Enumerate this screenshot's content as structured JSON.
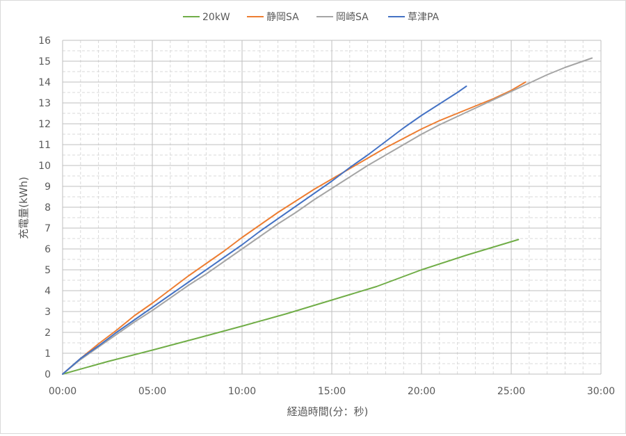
{
  "chart_data": {
    "type": "line",
    "title": "",
    "xlabel": "経過時間(分：秒)",
    "ylabel": "充電量(kWh)",
    "xlim": [
      0,
      30
    ],
    "ylim": [
      0,
      16
    ],
    "x_unit": "minutes",
    "x_ticks": [
      {
        "value": 0,
        "label": "00:00"
      },
      {
        "value": 5,
        "label": "05:00"
      },
      {
        "value": 10,
        "label": "10:00"
      },
      {
        "value": 15,
        "label": "15:00"
      },
      {
        "value": 20,
        "label": "20:00"
      },
      {
        "value": 25,
        "label": "25:00"
      },
      {
        "value": 30,
        "label": "30:00"
      }
    ],
    "y_ticks": [
      0,
      1,
      2,
      3,
      4,
      5,
      6,
      7,
      8,
      9,
      10,
      11,
      12,
      13,
      14,
      15,
      16
    ],
    "grid": true,
    "legend_position": "top",
    "series": [
      {
        "name": "20kW",
        "color": "#70ad47",
        "points": [
          [
            0,
            0
          ],
          [
            2.5,
            0.6
          ],
          [
            5,
            1.15
          ],
          [
            7.5,
            1.72
          ],
          [
            10,
            2.3
          ],
          [
            12.5,
            2.9
          ],
          [
            15,
            3.55
          ],
          [
            17.5,
            4.2
          ],
          [
            20,
            5.0
          ],
          [
            22.5,
            5.7
          ],
          [
            25.4,
            6.45
          ]
        ]
      },
      {
        "name": "静岡SA",
        "color": "#ed7d31",
        "points": [
          [
            0,
            0
          ],
          [
            1,
            0.75
          ],
          [
            2,
            1.45
          ],
          [
            3,
            2.1
          ],
          [
            4,
            2.8
          ],
          [
            5,
            3.4
          ],
          [
            6,
            4.05
          ],
          [
            7,
            4.7
          ],
          [
            8,
            5.3
          ],
          [
            9,
            5.9
          ],
          [
            10,
            6.55
          ],
          [
            11,
            7.15
          ],
          [
            12,
            7.75
          ],
          [
            13,
            8.3
          ],
          [
            14,
            8.85
          ],
          [
            15,
            9.35
          ],
          [
            16,
            9.85
          ],
          [
            17,
            10.35
          ],
          [
            18,
            10.85
          ],
          [
            19,
            11.3
          ],
          [
            20,
            11.75
          ],
          [
            21,
            12.15
          ],
          [
            22,
            12.5
          ],
          [
            23,
            12.85
          ],
          [
            24,
            13.2
          ],
          [
            25,
            13.6
          ],
          [
            25.8,
            14.0
          ]
        ]
      },
      {
        "name": "岡崎SA",
        "color": "#a5a5a5",
        "points": [
          [
            0,
            0
          ],
          [
            1,
            0.7
          ],
          [
            2,
            1.3
          ],
          [
            3,
            1.9
          ],
          [
            4,
            2.5
          ],
          [
            5,
            3.05
          ],
          [
            6,
            3.65
          ],
          [
            7,
            4.25
          ],
          [
            8,
            4.8
          ],
          [
            9,
            5.4
          ],
          [
            10,
            6.0
          ],
          [
            11,
            6.6
          ],
          [
            12,
            7.2
          ],
          [
            13,
            7.75
          ],
          [
            14,
            8.35
          ],
          [
            15,
            8.9
          ],
          [
            16,
            9.45
          ],
          [
            17,
            10.0
          ],
          [
            18,
            10.5
          ],
          [
            19,
            11.0
          ],
          [
            20,
            11.5
          ],
          [
            21,
            11.95
          ],
          [
            22,
            12.35
          ],
          [
            23,
            12.75
          ],
          [
            24,
            13.15
          ],
          [
            25,
            13.55
          ],
          [
            26,
            13.95
          ],
          [
            27,
            14.35
          ],
          [
            28,
            14.7
          ],
          [
            29,
            15.0
          ],
          [
            29.5,
            15.15
          ]
        ]
      },
      {
        "name": "草津PA",
        "color": "#4472c4",
        "points": [
          [
            0,
            0
          ],
          [
            1,
            0.75
          ],
          [
            2,
            1.35
          ],
          [
            3,
            2.0
          ],
          [
            4,
            2.6
          ],
          [
            5,
            3.2
          ],
          [
            6,
            3.8
          ],
          [
            7,
            4.4
          ],
          [
            8,
            5.0
          ],
          [
            9,
            5.6
          ],
          [
            10,
            6.2
          ],
          [
            11,
            6.85
          ],
          [
            12,
            7.45
          ],
          [
            13,
            8.05
          ],
          [
            14,
            8.65
          ],
          [
            15,
            9.25
          ],
          [
            16,
            9.9
          ],
          [
            17,
            10.5
          ],
          [
            18,
            11.15
          ],
          [
            19,
            11.8
          ],
          [
            20,
            12.4
          ],
          [
            21,
            12.95
          ],
          [
            22,
            13.5
          ],
          [
            22.5,
            13.8
          ]
        ]
      }
    ]
  }
}
